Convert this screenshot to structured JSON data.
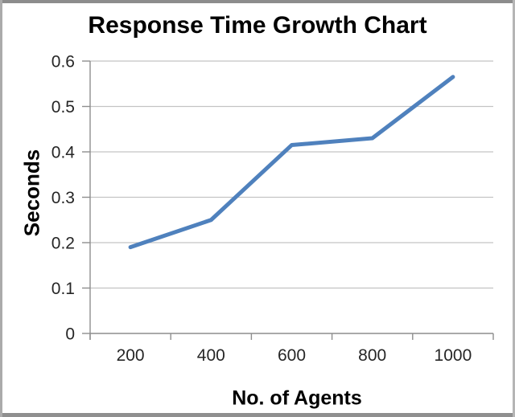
{
  "chart_data": {
    "type": "line",
    "title": "Response Time Growth Chart",
    "xlabel": "No. of Agents",
    "ylabel": "Seconds",
    "categories": [
      "200",
      "400",
      "600",
      "800",
      "1000"
    ],
    "values": [
      0.19,
      0.25,
      0.415,
      0.43,
      0.565
    ],
    "ylim": [
      0,
      0.6
    ],
    "y_ticks": [
      0,
      0.1,
      0.2,
      0.3,
      0.4,
      0.5,
      0.6
    ],
    "y_tick_labels": [
      "0",
      "0.1",
      "0.2",
      "0.3",
      "0.4",
      "0.5",
      "0.6"
    ],
    "grid": true,
    "legend_position": "none",
    "line_color": "#4f81bd",
    "gridline_color": "#c3c3c3",
    "axis_color": "#8e8e8e",
    "tick_label_color": "#262626",
    "title_color": "#000000",
    "background_color": "#ffffff",
    "frame_border_color": "#8c8c8c"
  }
}
